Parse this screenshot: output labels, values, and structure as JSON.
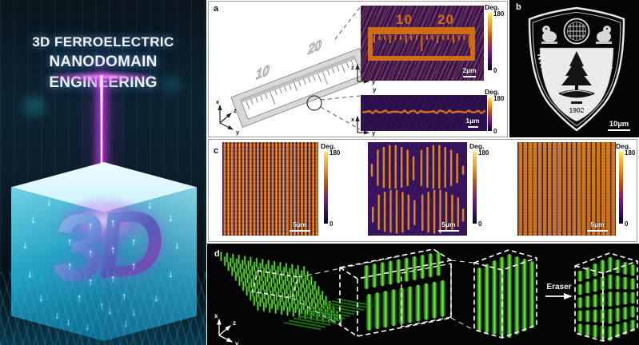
{
  "left_art": {
    "title_line1": "3D FERROELECTRIC",
    "title_line2": "NANODOMAIN ENGINEERING",
    "cube_text": "3D"
  },
  "colorbar": {
    "title": "Deg.",
    "max": "180",
    "min": "0"
  },
  "panel_a": {
    "label": "a",
    "schematic_numbers": [
      "10",
      "20"
    ],
    "pfm_numbers": [
      "10",
      "20"
    ],
    "scalebar_top": "2µm",
    "scalebar_bottom": "1µm",
    "axes_schematic": {
      "up": "x",
      "diag": "z",
      "right": "y"
    },
    "axes_top_image": {
      "up": "z",
      "right": "y"
    },
    "between_axis_label": "y",
    "axes_bottom_image": {
      "up": "x",
      "right": "y"
    }
  },
  "panel_b": {
    "label": "b",
    "arc_left_text": "NANJING",
    "arc_right_text": "UNIVERSITY",
    "year": "1902",
    "scalebar": "10µm"
  },
  "panel_c": {
    "label": "c",
    "scalebar": "5µm",
    "written_line_segments": {
      "top_band": [
        [
          4,
          24,
          36
        ],
        [
          10,
          9,
          46
        ],
        [
          16,
          6,
          48
        ],
        [
          22,
          4,
          49
        ],
        [
          28,
          4,
          49
        ],
        [
          34,
          6,
          48
        ],
        [
          40,
          9,
          46
        ],
        [
          46,
          16,
          40
        ],
        [
          54,
          9,
          46
        ],
        [
          60,
          6,
          48
        ],
        [
          66,
          4,
          49
        ],
        [
          72,
          4,
          49
        ],
        [
          78,
          6,
          48
        ],
        [
          84,
          9,
          46
        ],
        [
          90,
          13,
          43
        ],
        [
          96,
          26,
          34
        ]
      ],
      "bottom_band": [
        [
          5,
          70,
          85
        ],
        [
          11,
          57,
          93
        ],
        [
          17,
          54,
          95
        ],
        [
          23,
          52,
          96
        ],
        [
          29,
          52,
          97
        ],
        [
          35,
          54,
          96
        ],
        [
          41,
          57,
          93
        ],
        [
          47,
          63,
          88
        ],
        [
          55,
          57,
          94
        ],
        [
          61,
          54,
          96
        ],
        [
          67,
          52,
          97
        ],
        [
          73,
          52,
          97
        ],
        [
          79,
          54,
          95
        ],
        [
          85,
          57,
          93
        ],
        [
          91,
          60,
          90
        ],
        [
          96,
          72,
          84
        ]
      ]
    }
  },
  "panel_d": {
    "label": "d",
    "eraser_label": "Eraser",
    "axes": {
      "up": "x",
      "diag": "z",
      "right": "y"
    }
  },
  "colors": {
    "pfm_purple": "#371358",
    "pfm_orange": "#cf6d17",
    "colorbar_top_yellow": "#fcea6a",
    "domain_green": "#3fae22",
    "beam_magenta": "#d332ec",
    "cube_cyan": "#35c4e3"
  }
}
